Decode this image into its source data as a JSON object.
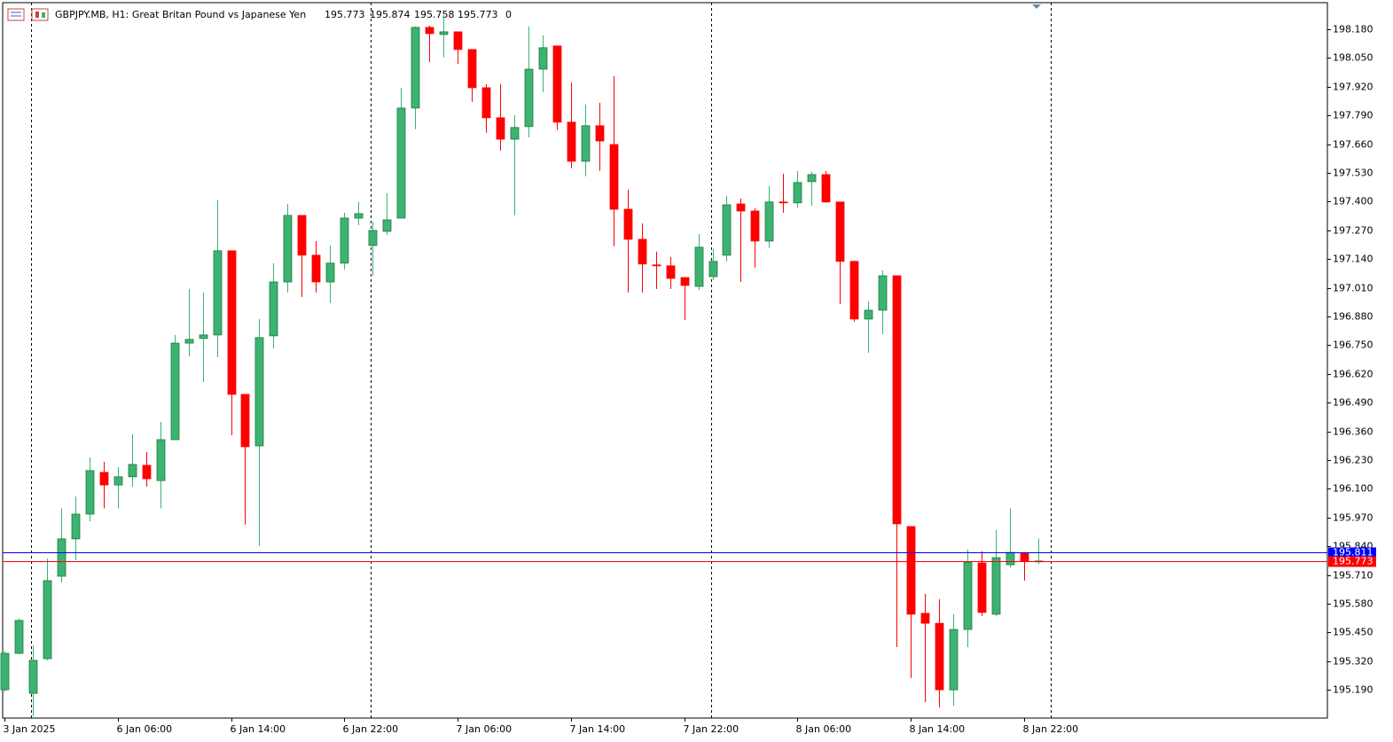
{
  "chart_data": {
    "type": "candlestick",
    "title": "GBPJPY.MB, H1:  Great Britan Pound vs Japanese Yen",
    "volume": 0,
    "up_color": "#3cb371",
    "up_edge": "#1e7a3c",
    "down_color": "#ff0000",
    "categories": [
      "3 Jan 2025",
      null,
      null,
      null,
      null,
      null,
      null,
      null,
      "6 Jan 06:00",
      null,
      null,
      null,
      null,
      null,
      null,
      null,
      "6 Jan 14:00",
      null,
      null,
      null,
      null,
      null,
      null,
      null,
      "6 Jan 22:00",
      null,
      null,
      null,
      null,
      null,
      null,
      null,
      "7 Jan 06:00",
      null,
      null,
      null,
      null,
      null,
      null,
      null,
      "7 Jan 14:00",
      null,
      null,
      null,
      null,
      null,
      null,
      null,
      "7 Jan 22:00",
      null,
      null,
      null,
      null,
      null,
      null,
      null,
      "8 Jan 06:00",
      null,
      null,
      null,
      null,
      null,
      null,
      null,
      "8 Jan 14:00",
      null,
      null,
      null,
      null,
      null,
      null,
      null,
      "8 Jan 22:00",
      null
    ],
    "open": [
      195.19,
      195.355,
      195.174,
      195.331,
      195.704,
      195.873,
      195.985,
      196.174,
      196.117,
      196.154,
      196.206,
      196.137,
      196.322,
      196.759,
      196.78,
      196.796,
      197.177,
      196.527,
      196.294,
      196.792,
      197.036,
      197.337,
      197.157,
      197.036,
      197.121,
      197.325,
      197.201,
      197.265,
      197.325,
      197.823,
      198.188,
      198.156,
      198.168,
      198.088,
      197.915,
      197.779,
      197.682,
      197.739,
      197.999,
      198.104,
      197.759,
      197.582,
      197.743,
      197.658,
      197.365,
      197.229,
      197.113,
      197.109,
      197.056,
      197.016,
      197.06,
      197.157,
      197.389,
      197.357,
      197.221,
      197.398,
      197.394,
      197.49,
      197.522,
      197.398,
      197.129,
      196.868,
      196.908,
      197.064,
      195.929,
      195.536,
      195.491,
      195.19,
      195.463,
      195.764,
      195.532,
      195.756,
      195.808,
      195.773
    ],
    "high": [
      195.363,
      195.512,
      195.391,
      195.784,
      196.011,
      196.065,
      196.242,
      196.222,
      196.198,
      196.346,
      196.266,
      196.402,
      196.796,
      197.004,
      196.988,
      197.406,
      197.177,
      196.527,
      196.868,
      197.121,
      197.389,
      197.337,
      197.221,
      197.201,
      197.349,
      197.398,
      197.309,
      197.438,
      197.915,
      198.192,
      198.196,
      198.244,
      198.168,
      198.088,
      197.931,
      197.931,
      197.791,
      198.192,
      198.152,
      198.104,
      197.939,
      197.839,
      197.847,
      197.967,
      197.454,
      197.301,
      197.173,
      197.149,
      197.056,
      197.253,
      197.185,
      197.426,
      197.414,
      197.369,
      197.47,
      197.526,
      197.538,
      197.534,
      197.538,
      197.398,
      197.133,
      196.948,
      197.089,
      197.064,
      195.929,
      195.624,
      195.6,
      195.532,
      195.825,
      195.817,
      195.913,
      196.011,
      195.808,
      195.874
    ],
    "low": [
      195.182,
      195.351,
      195.07,
      195.323,
      195.676,
      195.776,
      195.953,
      196.011,
      196.011,
      196.109,
      196.109,
      196.011,
      196.322,
      196.699,
      196.583,
      196.695,
      196.342,
      195.937,
      195.841,
      196.735,
      196.988,
      196.968,
      196.988,
      196.94,
      197.093,
      197.293,
      197.064,
      197.249,
      197.325,
      197.727,
      198.032,
      198.052,
      198.023,
      197.851,
      197.711,
      197.63,
      197.337,
      197.69,
      197.895,
      197.723,
      197.55,
      197.514,
      197.538,
      197.197,
      196.988,
      196.988,
      197.004,
      197.004,
      196.864,
      197.0,
      197.044,
      197.129,
      197.036,
      197.101,
      197.189,
      197.349,
      197.373,
      197.381,
      197.394,
      196.936,
      196.856,
      196.715,
      196.8,
      195.383,
      195.243,
      195.134,
      195.11,
      195.118,
      195.383,
      195.524,
      195.524,
      195.744,
      195.684,
      195.758
    ],
    "close": [
      195.355,
      195.504,
      195.323,
      195.684,
      195.873,
      195.985,
      196.182,
      196.117,
      196.154,
      196.21,
      196.145,
      196.322,
      196.759,
      196.776,
      196.796,
      197.177,
      196.527,
      196.29,
      196.784,
      197.036,
      197.337,
      197.157,
      197.036,
      197.121,
      197.325,
      197.345,
      197.269,
      197.317,
      197.823,
      198.188,
      198.16,
      198.168,
      198.088,
      197.915,
      197.779,
      197.682,
      197.735,
      197.999,
      198.096,
      197.759,
      197.582,
      197.743,
      197.674,
      197.365,
      197.229,
      197.117,
      197.109,
      197.052,
      197.02,
      197.193,
      197.129,
      197.385,
      197.357,
      197.221,
      197.398,
      197.394,
      197.486,
      197.522,
      197.398,
      197.129,
      196.868,
      196.908,
      197.064,
      195.941,
      195.532,
      195.491,
      195.19,
      195.463,
      195.768,
      195.54,
      195.788,
      195.812,
      195.773,
      195.773
    ],
    "ylim": [
      195.062,
      198.3
    ],
    "yticks": [
      {
        "value": 198.18,
        "label": "198.180"
      },
      {
        "value": 198.05,
        "label": "198.050"
      },
      {
        "value": 197.92,
        "label": "197.920"
      },
      {
        "value": 197.79,
        "label": "197.790"
      },
      {
        "value": 197.66,
        "label": "197.660"
      },
      {
        "value": 197.53,
        "label": "197.530"
      },
      {
        "value": 197.4,
        "label": "197.400"
      },
      {
        "value": 197.27,
        "label": "197.270"
      },
      {
        "value": 197.14,
        "label": "197.140"
      },
      {
        "value": 197.01,
        "label": "197.010"
      },
      {
        "value": 196.88,
        "label": "196.880"
      },
      {
        "value": 196.75,
        "label": "196.750"
      },
      {
        "value": 196.62,
        "label": "196.620"
      },
      {
        "value": 196.49,
        "label": "196.490"
      },
      {
        "value": 196.36,
        "label": "196.360"
      },
      {
        "value": 196.23,
        "label": "196.230"
      },
      {
        "value": 196.1,
        "label": "196.100"
      },
      {
        "value": 195.97,
        "label": "195.970"
      },
      {
        "value": 195.84,
        "label": "195.840"
      },
      {
        "value": 195.71,
        "label": "195.710"
      },
      {
        "value": 195.58,
        "label": "195.580"
      },
      {
        "value": 195.45,
        "label": "195.450"
      },
      {
        "value": 195.32,
        "label": "195.320"
      },
      {
        "value": 195.19,
        "label": "195.190"
      }
    ],
    "price_lines": [
      {
        "value": 195.811,
        "color": "#0000ff"
      },
      {
        "value": 195.773,
        "color": "#ff0000"
      }
    ]
  }
}
